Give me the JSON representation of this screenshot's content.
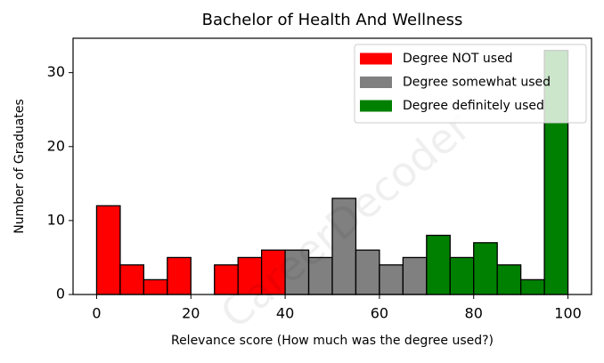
{
  "chart_data": {
    "type": "histogram",
    "title": "Bachelor of Health And Wellness",
    "xlabel": "Relevance score (How much was the degree used?)",
    "ylabel": "Number of Graduates",
    "watermark": "CareerDecoder",
    "series": [
      {
        "name": "Degree NOT used",
        "color": "#ff0000",
        "bins": [
          0,
          5,
          10,
          15,
          20,
          25,
          30,
          35,
          40
        ],
        "values": [
          12,
          4,
          2,
          5,
          0,
          4,
          5,
          6
        ]
      },
      {
        "name": "Degree somewhat used",
        "color": "#808080",
        "bins": [
          40,
          45,
          50,
          55,
          60,
          65,
          70
        ],
        "values": [
          6,
          5,
          13,
          6,
          4,
          5
        ]
      },
      {
        "name": "Degree definitely used",
        "color": "#008000",
        "bins": [
          70,
          75,
          80,
          85,
          90,
          95,
          100
        ],
        "values": [
          8,
          5,
          7,
          4,
          2,
          33
        ]
      }
    ],
    "xlim": [
      -5,
      105
    ],
    "xticks": [
      0,
      20,
      40,
      60,
      80,
      100
    ],
    "ylim": [
      0,
      34.65
    ],
    "yticks": [
      0,
      10,
      20,
      30
    ],
    "legend": "upper right"
  }
}
